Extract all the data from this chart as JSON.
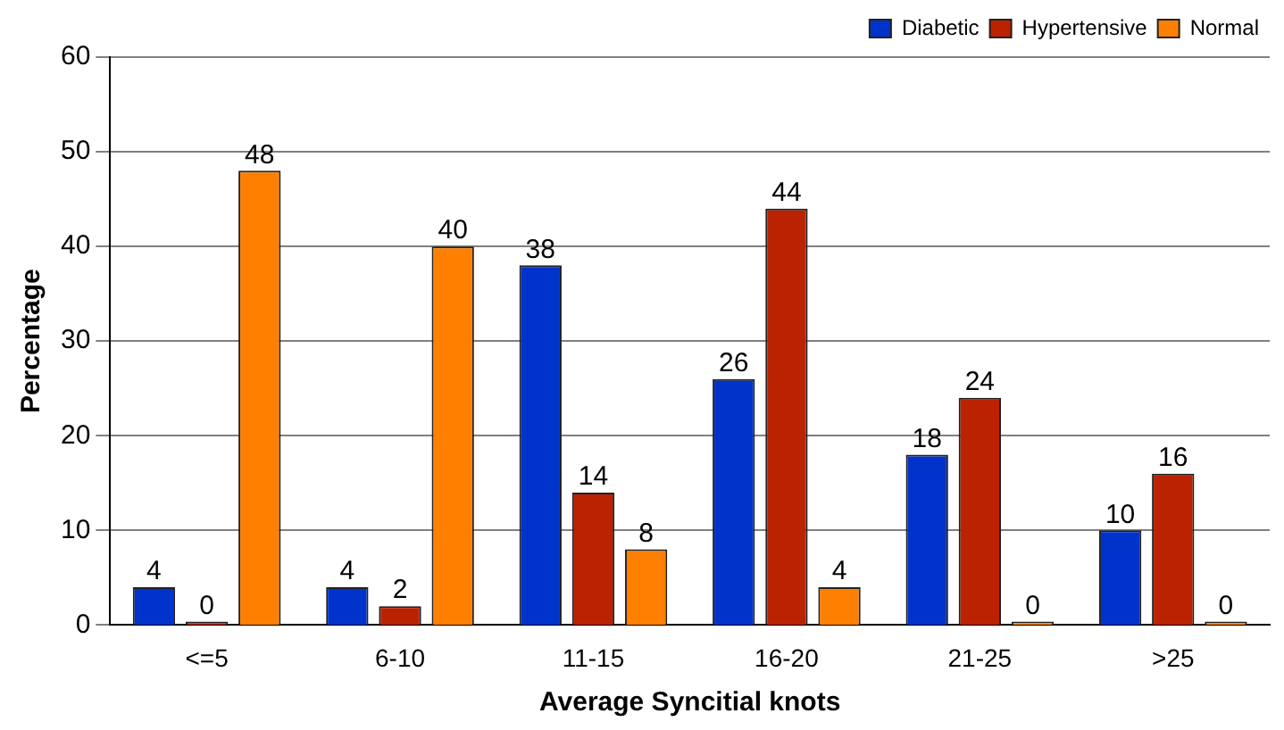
{
  "chart_data": {
    "type": "bar",
    "xlabel": "Average Syncitial knots",
    "ylabel": "Percentage",
    "categories": [
      "<=5",
      "6-10",
      "11-15",
      "16-20",
      "21-25",
      ">25"
    ],
    "series": [
      {
        "name": "Diabetic",
        "color": "#0033cc",
        "values": [
          4,
          4,
          38,
          26,
          18,
          10
        ]
      },
      {
        "name": "Hypertensive",
        "color": "#bb2200",
        "values": [
          0,
          2,
          14,
          44,
          24,
          16
        ]
      },
      {
        "name": "Normal",
        "color": "#ff8000",
        "values": [
          48,
          40,
          8,
          4,
          0,
          0
        ]
      }
    ],
    "ylim": [
      0,
      60
    ],
    "yticks": [
      0,
      10,
      20,
      30,
      40,
      50,
      60
    ],
    "grid": "y",
    "legend": "top right",
    "data_labels": true
  }
}
